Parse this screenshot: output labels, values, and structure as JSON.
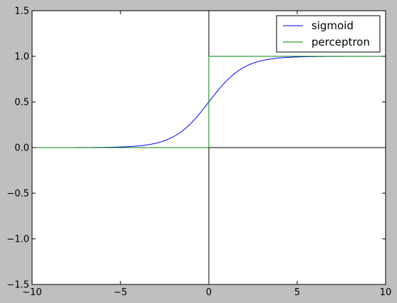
{
  "chart_data": {
    "type": "line",
    "title": "",
    "xlabel": "",
    "ylabel": "",
    "xlim": [
      -10,
      10
    ],
    "ylim": [
      -1.5,
      1.5
    ],
    "xticks": [
      -10,
      -5,
      0,
      5,
      10
    ],
    "xtick_labels": [
      "−10",
      "−5",
      "0",
      "5",
      "10"
    ],
    "yticks": [
      -1.5,
      -1.0,
      -0.5,
      0.0,
      0.5,
      1.0,
      1.5
    ],
    "ytick_labels": [
      "−1.5",
      "−1.0",
      "−0.5",
      "0.0",
      "0.5",
      "1.0",
      "1.5"
    ],
    "grid": false,
    "reference_lines": {
      "x": 0,
      "y": 0,
      "color": "#000000"
    },
    "legend": {
      "placement": "top-right"
    },
    "series": [
      {
        "name": "sigmoid",
        "color": "#0000ff",
        "function": "1/(1+exp(-x))",
        "x": [
          -10,
          -9,
          -8,
          -7,
          -6,
          -5,
          -4,
          -3.5,
          -3,
          -2.5,
          -2,
          -1.5,
          -1,
          -0.5,
          0,
          0.5,
          1,
          1.5,
          2,
          2.5,
          3,
          3.5,
          4,
          5,
          6,
          7,
          8,
          9,
          10
        ],
        "y": [
          4.54e-05,
          0.000123,
          0.000335,
          0.000911,
          0.00247,
          0.00669,
          0.018,
          0.0293,
          0.0474,
          0.0759,
          0.1192,
          0.1824,
          0.2689,
          0.3775,
          0.5,
          0.6225,
          0.7311,
          0.8176,
          0.8808,
          0.9241,
          0.9526,
          0.9707,
          0.982,
          0.9933,
          0.9975,
          0.9991,
          0.9997,
          0.9999,
          1.0
        ]
      },
      {
        "name": "perceptron",
        "color": "#008000",
        "function": "step(x)",
        "x": [
          -10,
          0,
          0,
          10
        ],
        "y": [
          0,
          0,
          1,
          1
        ]
      }
    ]
  }
}
